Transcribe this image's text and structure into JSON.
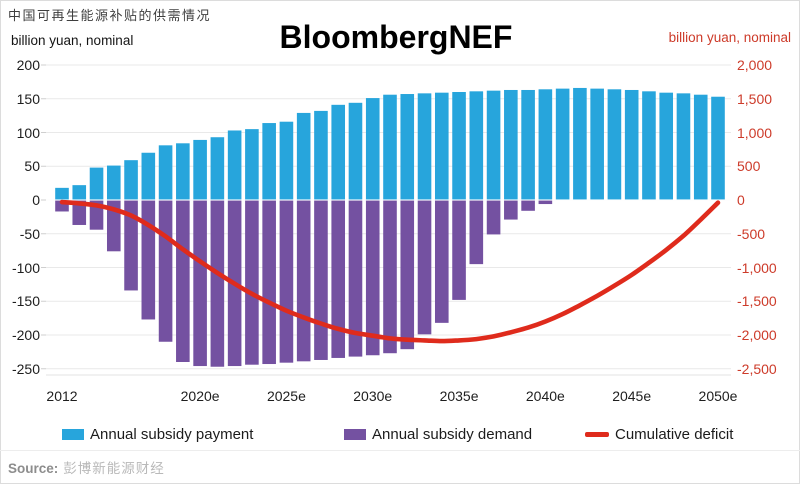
{
  "header": {
    "title": "中国可再生能源补贴的供需情况",
    "watermark": "BloombergNEF"
  },
  "axes": {
    "left_unit_label": "billion yuan, nominal",
    "right_unit_label": "billion yuan, nominal",
    "left_ticks": [
      "200",
      "150",
      "100",
      "50",
      "0",
      "-50",
      "-100",
      "-150",
      "-200",
      "-250"
    ],
    "right_ticks": [
      "2,000",
      "1,500",
      "1,000",
      "500",
      "0",
      "-500",
      "-1,000",
      "-1,500",
      "-2,000",
      "-2,500"
    ],
    "x_ticks": [
      "2012",
      "2020e",
      "2025e",
      "2030e",
      "2035e",
      "2040e",
      "2045e",
      "2050e"
    ]
  },
  "legend": {
    "items": [
      {
        "label": "Annual subsidy payment",
        "color": "#27a5dc",
        "swatch": "bar"
      },
      {
        "label": "Annual subsidy demand",
        "color": "#7451a1",
        "swatch": "bar"
      },
      {
        "label": "Cumulative deficit",
        "color": "#df2b1c",
        "swatch": "line"
      }
    ]
  },
  "footer": {
    "source_label": "Source:",
    "source_text": "彭博新能源财经"
  },
  "chart_data": {
    "type": "bar+line combo",
    "title": "中国可再生能源补贴的供需情况",
    "left_axis": {
      "label": "billion yuan, nominal",
      "ylim": [
        -250,
        200
      ],
      "tick_step": 50
    },
    "right_axis": {
      "label": "billion yuan, nominal",
      "ylim": [
        -2500,
        2000
      ],
      "tick_step": 500
    },
    "grid": "horizontal only",
    "legend_position": "bottom",
    "years": [
      2012,
      2013,
      2014,
      2015,
      2016,
      2017,
      2018,
      2019,
      2020,
      2021,
      2022,
      2023,
      2024,
      2025,
      2026,
      2027,
      2028,
      2029,
      2030,
      2031,
      2032,
      2033,
      2034,
      2035,
      2036,
      2037,
      2038,
      2039,
      2040,
      2041,
      2042,
      2043,
      2044,
      2045,
      2046,
      2047,
      2048,
      2049,
      2050
    ],
    "series": [
      {
        "name": "Annual subsidy payment",
        "type": "bar",
        "axis": "left",
        "color": "#27a5dc",
        "values": [
          18,
          22,
          48,
          51,
          59,
          70,
          81,
          84,
          89,
          93,
          103,
          105,
          114,
          116,
          129,
          132,
          141,
          144,
          151,
          156,
          157,
          158,
          159,
          160,
          161,
          162,
          163,
          163,
          164,
          165,
          166,
          165,
          164,
          163,
          161,
          159,
          158,
          156,
          153
        ]
      },
      {
        "name": "Annual subsidy demand",
        "type": "bar",
        "axis": "left",
        "color": "#7451a1",
        "values": [
          -17,
          -37,
          -44,
          -76,
          -134,
          -177,
          -210,
          -240,
          -246,
          -247,
          -246,
          -244,
          -243,
          -241,
          -239,
          -237,
          -234,
          -232,
          -230,
          -227,
          -221,
          -199,
          -182,
          -148,
          -95,
          -51,
          -29,
          -16,
          -6,
          0,
          0,
          0,
          0,
          0,
          0,
          0,
          0,
          0,
          0
        ]
      },
      {
        "name": "Cumulative deficit",
        "type": "line",
        "axis": "right",
        "color": "#df2b1c",
        "values": [
          -30,
          -50,
          -80,
          -140,
          -230,
          -370,
          -540,
          -730,
          -910,
          -1080,
          -1240,
          -1390,
          -1520,
          -1640,
          -1740,
          -1830,
          -1910,
          -1970,
          -2010,
          -2050,
          -2070,
          -2080,
          -2090,
          -2080,
          -2060,
          -2020,
          -1960,
          -1890,
          -1800,
          -1690,
          -1560,
          -1420,
          -1270,
          -1110,
          -930,
          -740,
          -530,
          -290,
          -40
        ]
      }
    ]
  }
}
